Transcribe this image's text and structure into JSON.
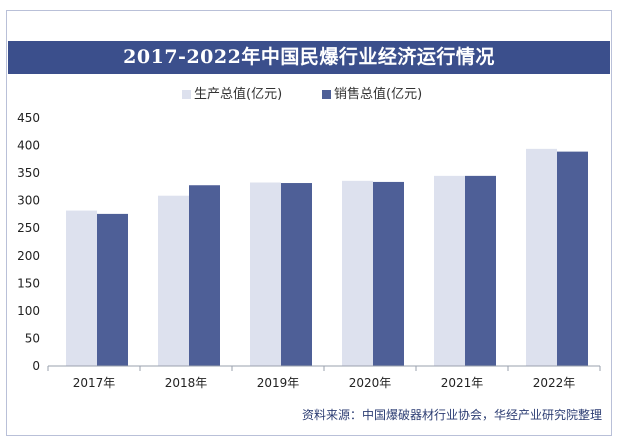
{
  "title": "2017-2022年中国民爆行业经济运行情况",
  "source": "资料来源：中国爆破器材行业协会，华经产业研究院整理",
  "colors": {
    "header_bg": "#3b4f8c",
    "production": "#dde1ee",
    "sales": "#4e5f97",
    "axis_text": "#222222",
    "source_text": "#2c3d73"
  },
  "chart_data": {
    "type": "bar",
    "categories": [
      "2017年",
      "2018年",
      "2019年",
      "2020年",
      "2021年",
      "2022年"
    ],
    "series": [
      {
        "name": "生产总值(亿元)",
        "values": [
          282,
          309,
          333,
          336,
          345,
          394
        ]
      },
      {
        "name": "销售总值(亿元)",
        "values": [
          276,
          328,
          332,
          334,
          345,
          389
        ]
      }
    ],
    "yticks": [
      0,
      50,
      100,
      150,
      200,
      250,
      300,
      350,
      400,
      450
    ],
    "ylim": [
      0,
      450
    ],
    "grid": false,
    "legend_position": "top-center"
  }
}
